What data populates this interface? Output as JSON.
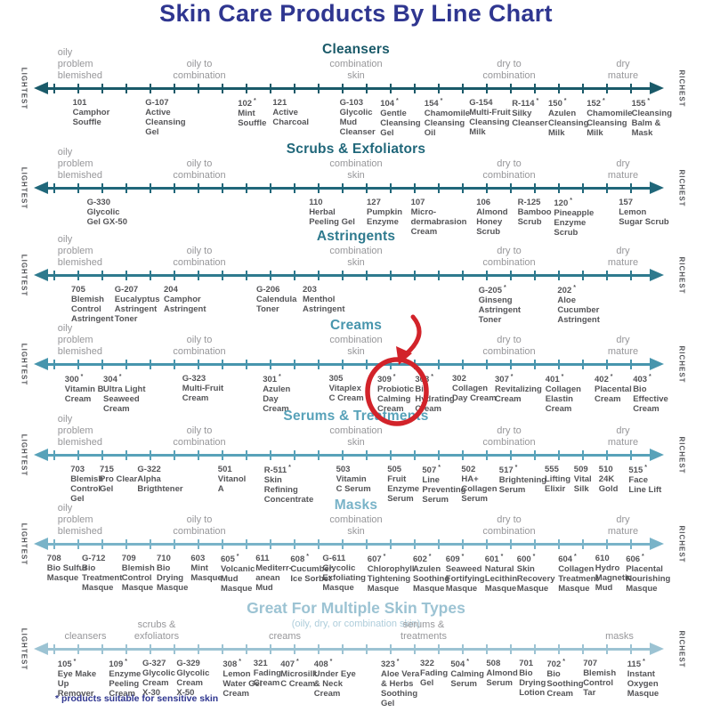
{
  "page": {
    "title": "Skin Care Products By Line Chart",
    "footnote": "* products suitable for sensitive skin"
  },
  "colors": {
    "title_navy": "#2f3690",
    "annotation_red": "#d2232a",
    "gray_label": "#97979a",
    "product_text": "#555558"
  },
  "axis_ends": {
    "left": "LIGHTEST",
    "right": "RICHEST"
  },
  "skin_labels": {
    "far_left": "oily\nproblem\nblemished",
    "oily_combo": "oily to\ncombination",
    "combo": "combination\nskin",
    "dry_combo": "dry to\ncombination",
    "dry_mature": "dry\nmature"
  },
  "annotation": {
    "circled_product": "309",
    "shape": "hand-drawn red circle with curved arrow"
  },
  "chart_data": {
    "type": "scatter",
    "scale": {
      "left_end": "LIGHTEST",
      "right_end": "RICHEST",
      "x_unit": "percent of page width"
    },
    "sections": [
      {
        "title": "Cleansers",
        "color": "#1a5a69",
        "header": "skin",
        "products": [
          {
            "code": "101",
            "star": false,
            "name": "Camphor\nSouffle",
            "x": 10.2
          },
          {
            "code": "G-107",
            "star": false,
            "name": "Active\nCleansing\nGel",
            "x": 20.4
          },
          {
            "code": "102",
            "star": true,
            "name": "Mint\nSouffle",
            "x": 33.4
          },
          {
            "code": "121",
            "star": false,
            "name": "Active\nCharcoal",
            "x": 38.3
          },
          {
            "code": "G-103",
            "star": false,
            "name": "Glycolic\nMud\nCleanser",
            "x": 47.7
          },
          {
            "code": "104",
            "star": true,
            "name": "Gentle\nCleansing\nGel",
            "x": 53.4
          },
          {
            "code": "154",
            "star": true,
            "name": "Chamomile\nCleansing\nOil",
            "x": 59.6
          },
          {
            "code": "G-154",
            "star": false,
            "name": "Multi-Fruit\nCleansing\nMilk",
            "x": 65.9
          },
          {
            "code": "R-114",
            "star": true,
            "name": "Silky\nCleanser",
            "x": 71.9
          },
          {
            "code": "150",
            "star": true,
            "name": "Azulen\nCleansing\nMilk",
            "x": 77.0
          },
          {
            "code": "152",
            "star": true,
            "name": "Chamomile\nCleansing\nMilk",
            "x": 82.4
          },
          {
            "code": "155",
            "star": true,
            "name": "Cleansing\nBalm &\nMask",
            "x": 88.7
          }
        ]
      },
      {
        "title": "Scrubs & Exfoliators",
        "color": "#20677a",
        "header": "skin",
        "products": [
          {
            "code": "G-330",
            "star": false,
            "name": "Glycolic\nGel GX-50",
            "x": 12.2
          },
          {
            "code": "110",
            "star": false,
            "name": "Herbal\nPeeling Gel",
            "x": 43.4
          },
          {
            "code": "127",
            "star": false,
            "name": "Pumpkin\nEnzyme",
            "x": 51.5
          },
          {
            "code": "107",
            "star": false,
            "name": "Micro-\ndermabrasion\nCream",
            "x": 57.7
          },
          {
            "code": "106",
            "star": false,
            "name": "Almond\nHoney\nScrub",
            "x": 66.9
          },
          {
            "code": "R-125",
            "star": false,
            "name": "Bamboo\nScrub",
            "x": 72.7
          },
          {
            "code": "120",
            "star": true,
            "name": "Pineapple\nEnzyme\nScrub",
            "x": 77.8
          },
          {
            "code": "157",
            "star": false,
            "name": "Lemon\nSugar Scrub",
            "x": 86.9
          }
        ]
      },
      {
        "title": "Astringents",
        "color": "#2e7a8e",
        "header": "skin",
        "products": [
          {
            "code": "705",
            "star": false,
            "name": "Blemish\nControl\nAstringent",
            "x": 10.0
          },
          {
            "code": "G-207",
            "star": false,
            "name": "Eucalyptus\nAstringent\nToner",
            "x": 16.1
          },
          {
            "code": "204",
            "star": false,
            "name": "Camphor\nAstringent",
            "x": 23.0
          },
          {
            "code": "G-206",
            "star": false,
            "name": "Calendula\nToner",
            "x": 36.0
          },
          {
            "code": "203",
            "star": false,
            "name": "Menthol\nAstringent",
            "x": 42.5
          },
          {
            "code": "G-205",
            "star": true,
            "name": "Ginseng\nAstringent\nToner",
            "x": 67.2
          },
          {
            "code": "202",
            "star": true,
            "name": "Aloe\nCucumber\nAstringent",
            "x": 78.3
          }
        ]
      },
      {
        "title": "Creams",
        "color": "#4795ad",
        "header": "skin",
        "products": [
          {
            "code": "300",
            "star": true,
            "name": "Vitamin B\nCream",
            "x": 9.1
          },
          {
            "code": "304",
            "star": true,
            "name": "Ultra Light\nSeaweed\nCream",
            "x": 14.5
          },
          {
            "code": "G-323",
            "star": false,
            "name": "Multi-Fruit\nCream",
            "x": 25.6
          },
          {
            "code": "301",
            "star": true,
            "name": "Azulen\nDay\nCream",
            "x": 36.9
          },
          {
            "code": "305",
            "star": false,
            "name": "Vitaplex\nC Cream",
            "x": 46.2
          },
          {
            "code": "309",
            "star": true,
            "name": "Probiotic\nCalming\nCream",
            "x": 53.0,
            "highlight": true
          },
          {
            "code": "303",
            "star": true,
            "name": "Bio\nHydrating\nCream",
            "x": 58.3
          },
          {
            "code": "302",
            "star": false,
            "name": "Collagen\nDay Cream",
            "x": 63.5
          },
          {
            "code": "307",
            "star": true,
            "name": "Revitalizing\nCream",
            "x": 69.5
          },
          {
            "code": "401",
            "star": true,
            "name": "Collagen\nElastin\nCream",
            "x": 76.6
          },
          {
            "code": "402",
            "star": true,
            "name": "Placental\nCream",
            "x": 83.5
          },
          {
            "code": "403",
            "star": true,
            "name": "Bio\nEffective\nCream",
            "x": 88.9
          }
        ]
      },
      {
        "title": "Serums & Treatments",
        "color": "#58a2b9",
        "header": "skin",
        "products": [
          {
            "code": "703",
            "star": false,
            "name": "Blemish\nControl\nGel",
            "x": 9.9
          },
          {
            "code": "715",
            "star": false,
            "name": "Pro Clear\nGel",
            "x": 14.0
          },
          {
            "code": "G-322",
            "star": false,
            "name": "Alpha\nBrigthtener",
            "x": 19.3
          },
          {
            "code": "501",
            "star": false,
            "name": "Vitanol\nA",
            "x": 30.6
          },
          {
            "code": "R-511",
            "star": true,
            "name": "Skin\nRefining\nConcentrate",
            "x": 37.1
          },
          {
            "code": "503",
            "star": false,
            "name": "Vitamin\nC Serum",
            "x": 47.2
          },
          {
            "code": "505",
            "star": false,
            "name": "Fruit\nEnzyme\nSerum",
            "x": 54.4
          },
          {
            "code": "507",
            "star": true,
            "name": "Line\nPreventing\nSerum",
            "x": 59.3
          },
          {
            "code": "502",
            "star": false,
            "name": "HA+\nCollagen\nSerum",
            "x": 64.8
          },
          {
            "code": "517",
            "star": true,
            "name": "Brightening\nSerum",
            "x": 70.1
          },
          {
            "code": "555",
            "star": false,
            "name": "Lifting\nElixir",
            "x": 76.5
          },
          {
            "code": "509",
            "star": false,
            "name": "Vital\nSilk",
            "x": 80.6
          },
          {
            "code": "510",
            "star": false,
            "name": "24K\nGold",
            "x": 84.1
          },
          {
            "code": "515",
            "star": true,
            "name": "Face\nLine Lift",
            "x": 88.3
          }
        ]
      },
      {
        "title": "Masks",
        "color": "#79b3c8",
        "header": "skin",
        "products": [
          {
            "code": "708",
            "star": false,
            "name": "Bio Sulfur\nMasque",
            "x": 6.6
          },
          {
            "code": "G-712",
            "star": false,
            "name": "Bio\nTreatment\nMasque",
            "x": 11.5
          },
          {
            "code": "709",
            "star": false,
            "name": "Blemish\nControl\nMasque",
            "x": 17.1
          },
          {
            "code": "710",
            "star": false,
            "name": "Bio\nDrying\nMasque",
            "x": 22.0
          },
          {
            "code": "603",
            "star": false,
            "name": "Mint\nMasque",
            "x": 26.8
          },
          {
            "code": "605",
            "star": true,
            "name": "Volcanic\nMud\nMasque",
            "x": 31.0
          },
          {
            "code": "611",
            "star": false,
            "name": "Mediterr-\nanean\nMud",
            "x": 35.9
          },
          {
            "code": "608",
            "star": true,
            "name": "Cucumber\nIce Sorbet",
            "x": 40.8
          },
          {
            "code": "G-611",
            "star": false,
            "name": "Glycolic\nExfoliating\nMasque",
            "x": 45.3
          },
          {
            "code": "607",
            "star": true,
            "name": "Chlorophyll\nTightening\nMasque",
            "x": 51.6
          },
          {
            "code": "602",
            "star": true,
            "name": "Azulen\nSoothing\nMasque",
            "x": 58.0
          },
          {
            "code": "609",
            "star": true,
            "name": "Seaweed\nFortifying\nMasque",
            "x": 62.6
          },
          {
            "code": "601",
            "star": true,
            "name": "Natural\nLecithin\nMasque",
            "x": 68.1
          },
          {
            "code": "600",
            "star": true,
            "name": "Skin\nRecovery\nMasque",
            "x": 72.6
          },
          {
            "code": "604",
            "star": true,
            "name": "Collagen\nTreatment\nMasque",
            "x": 78.4
          },
          {
            "code": "610",
            "star": false,
            "name": "Hydro\nMagnetic\nMud",
            "x": 83.6
          },
          {
            "code": "606",
            "star": true,
            "name": "Placental\nNourishing\nMasque",
            "x": 87.9
          }
        ]
      },
      {
        "title": "Great For Multiple Skin Types",
        "color": "#9cc3d3",
        "subtitle": "(oily, dry, or combination skin)",
        "subtitle_color": "#aecddb",
        "header": "categories",
        "categories": [
          {
            "label": "cleansers",
            "x": 12
          },
          {
            "label": "scrubs &\nexfoliators",
            "x": 22
          },
          {
            "label": "creams",
            "x": 40
          },
          {
            "label": "serums &\ntreatments",
            "x": 59.5
          },
          {
            "label": "masks",
            "x": 87
          }
        ],
        "products": [
          {
            "code": "105",
            "star": true,
            "name": "Eye Make\nUp\nRemover",
            "x": 8.1
          },
          {
            "code": "109",
            "star": true,
            "name": "Enzyme\nPeeling\nCream",
            "x": 15.3
          },
          {
            "code": "G-327",
            "star": false,
            "name": "Glycolic\nCream\nX-30",
            "x": 20.0
          },
          {
            "code": "G-329",
            "star": false,
            "name": "Glycolic\nCream\nX-50",
            "x": 24.8
          },
          {
            "code": "308",
            "star": true,
            "name": "Lemon\nWater Gel\nCream",
            "x": 31.3
          },
          {
            "code": "321",
            "star": false,
            "name": "Fading\nCream",
            "x": 35.6
          },
          {
            "code": "407",
            "star": true,
            "name": "Microsilk\nC Cream",
            "x": 39.4
          },
          {
            "code": "408",
            "star": true,
            "name": "Under Eye\n& Neck\nCream",
            "x": 44.1
          },
          {
            "code": "323",
            "star": true,
            "name": "Aloe Vera\n& Herbs\nSoothing\nGel",
            "x": 53.5
          },
          {
            "code": "322",
            "star": false,
            "name": "Fading\nGel",
            "x": 59.0
          },
          {
            "code": "504",
            "star": true,
            "name": "Calming\nSerum",
            "x": 63.3
          },
          {
            "code": "508",
            "star": false,
            "name": "Almond\nSerum",
            "x": 68.3
          },
          {
            "code": "701",
            "star": false,
            "name": "Bio\nDrying\nLotion",
            "x": 72.9
          },
          {
            "code": "702",
            "star": true,
            "name": "Bio\nSoothing\nCream",
            "x": 76.8
          },
          {
            "code": "707",
            "star": false,
            "name": "Blemish\nControl\nTar",
            "x": 81.9
          },
          {
            "code": "115",
            "star": true,
            "name": "Instant\nOxygen\nMasque",
            "x": 88.1
          }
        ]
      }
    ]
  }
}
